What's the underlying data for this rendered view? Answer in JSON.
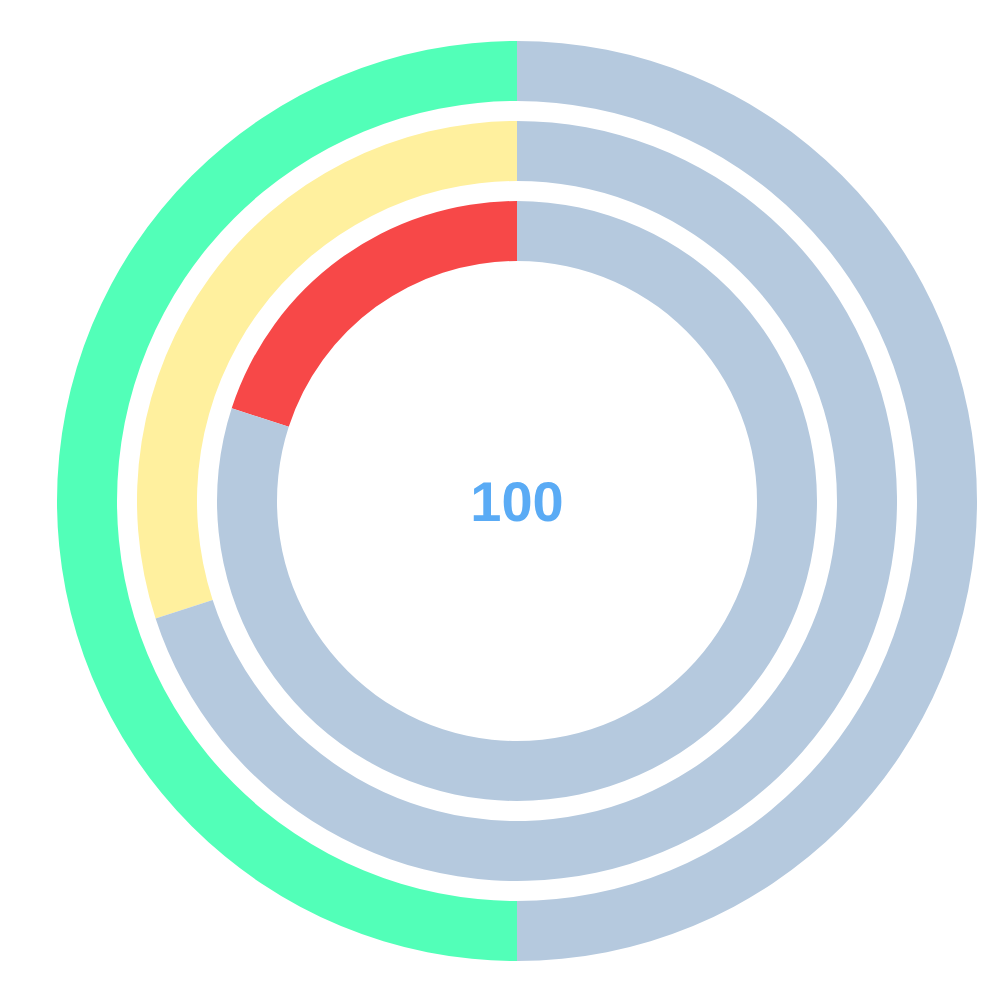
{
  "chart_data": {
    "type": "donut",
    "categories": [
      null,
      null
    ],
    "series": [
      {
        "colors": [
          "#f74848",
          "#b5c9de"
        ],
        "values": [
          20,
          80
        ]
      },
      {
        "colors": [
          "#fff09e",
          "#b5c9de"
        ],
        "values": [
          30,
          70
        ]
      },
      {
        "colors": [
          "#52ffb8",
          "#b5c9de"
        ],
        "values": [
          50,
          50
        ]
      }
    ],
    "annotations": [
      "100"
    ]
  }
}
